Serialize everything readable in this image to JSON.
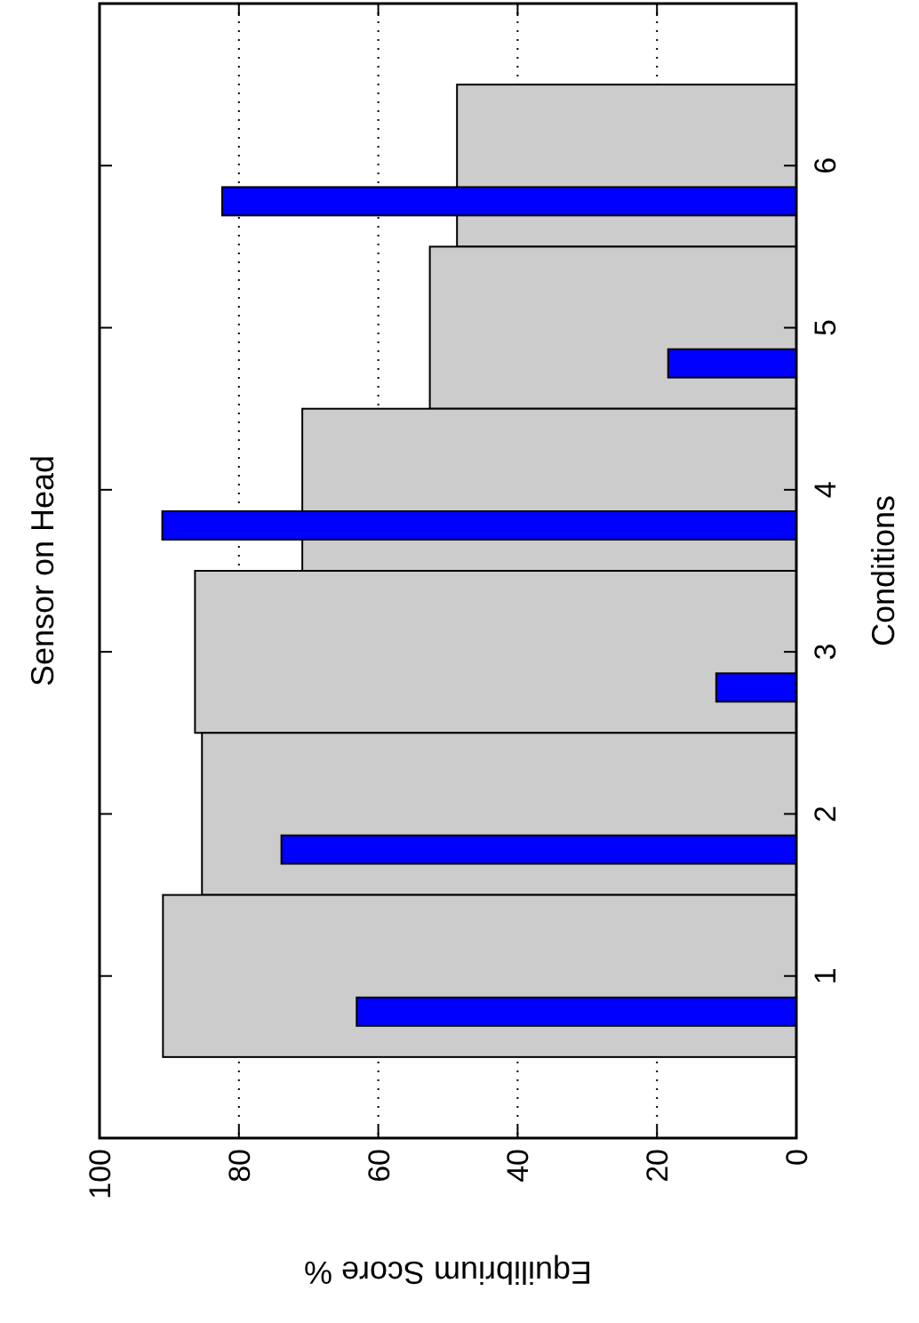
{
  "chart_data": {
    "type": "bar",
    "orientation": "horizontal",
    "title": "Sensor on Head",
    "xlabel": "Equilibrium Score %",
    "ylabel": "Conditions",
    "categories": [
      "6",
      "5",
      "4",
      "3",
      "2",
      "1"
    ],
    "xlim": [
      100,
      0
    ],
    "xticks": [
      100,
      80,
      60,
      40,
      20,
      0
    ],
    "grid": "x",
    "series": [
      {
        "color": "#cccccc",
        "values": [
          48.7,
          52.6,
          70.9,
          86.3,
          85.3,
          90.9
        ]
      },
      {
        "color": "#0000ff",
        "values": [
          82.4,
          18.4,
          91.0,
          11.5,
          73.9,
          63.1
        ]
      }
    ]
  }
}
